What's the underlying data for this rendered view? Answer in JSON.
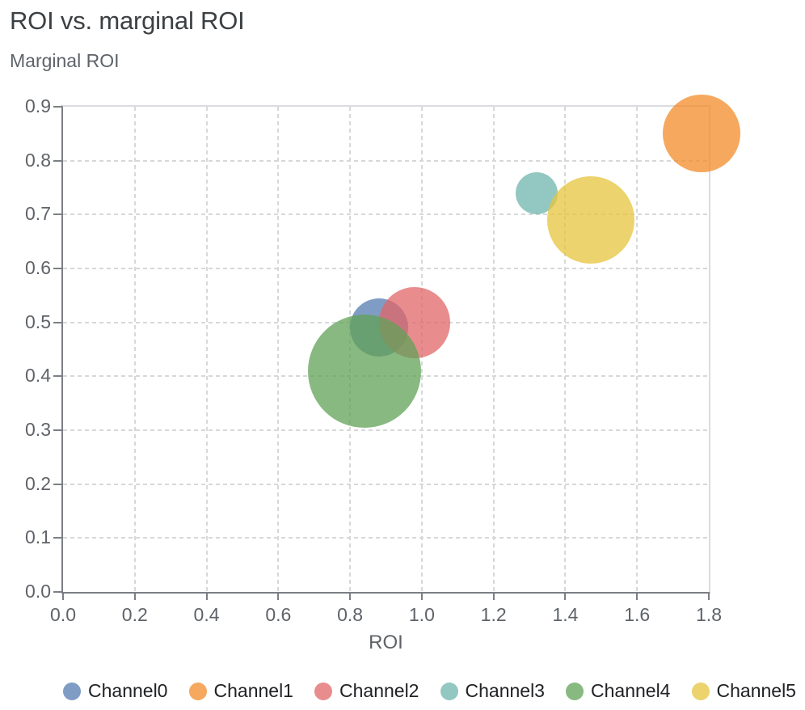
{
  "chart_data": {
    "type": "scatter",
    "subtype": "bubble",
    "title": "ROI vs. marginal ROI",
    "xlabel": "ROI",
    "ylabel": "Marginal ROI",
    "xlim": [
      0,
      1.8
    ],
    "ylim": [
      0,
      0.9
    ],
    "x_tick_labels": [
      "0.0",
      "0.2",
      "0.4",
      "0.6",
      "0.8",
      "1.0",
      "1.2",
      "1.4",
      "1.6",
      "1.8"
    ],
    "y_tick_labels": [
      "0.0",
      "0.1",
      "0.2",
      "0.3",
      "0.4",
      "0.5",
      "0.6",
      "0.7",
      "0.8",
      "0.9"
    ],
    "grid": "dashed",
    "legend_position": "bottom",
    "marker_opacity": 0.75,
    "series": [
      {
        "name": "Channel0",
        "color": "#547bb0",
        "x": 0.88,
        "y": 0.49,
        "radius_px": 36
      },
      {
        "name": "Channel1",
        "color": "#f38b28",
        "x": 1.78,
        "y": 0.85,
        "radius_px": 48
      },
      {
        "name": "Channel2",
        "color": "#e16668",
        "x": 0.98,
        "y": 0.5,
        "radius_px": 44
      },
      {
        "name": "Channel3",
        "color": "#6fb4ac",
        "x": 1.32,
        "y": 0.74,
        "radius_px": 26
      },
      {
        "name": "Channel4",
        "color": "#60a257",
        "x": 0.84,
        "y": 0.41,
        "radius_px": 70
      },
      {
        "name": "Channel5",
        "color": "#e5c43c",
        "x": 1.47,
        "y": 0.69,
        "radius_px": 54
      }
    ]
  }
}
